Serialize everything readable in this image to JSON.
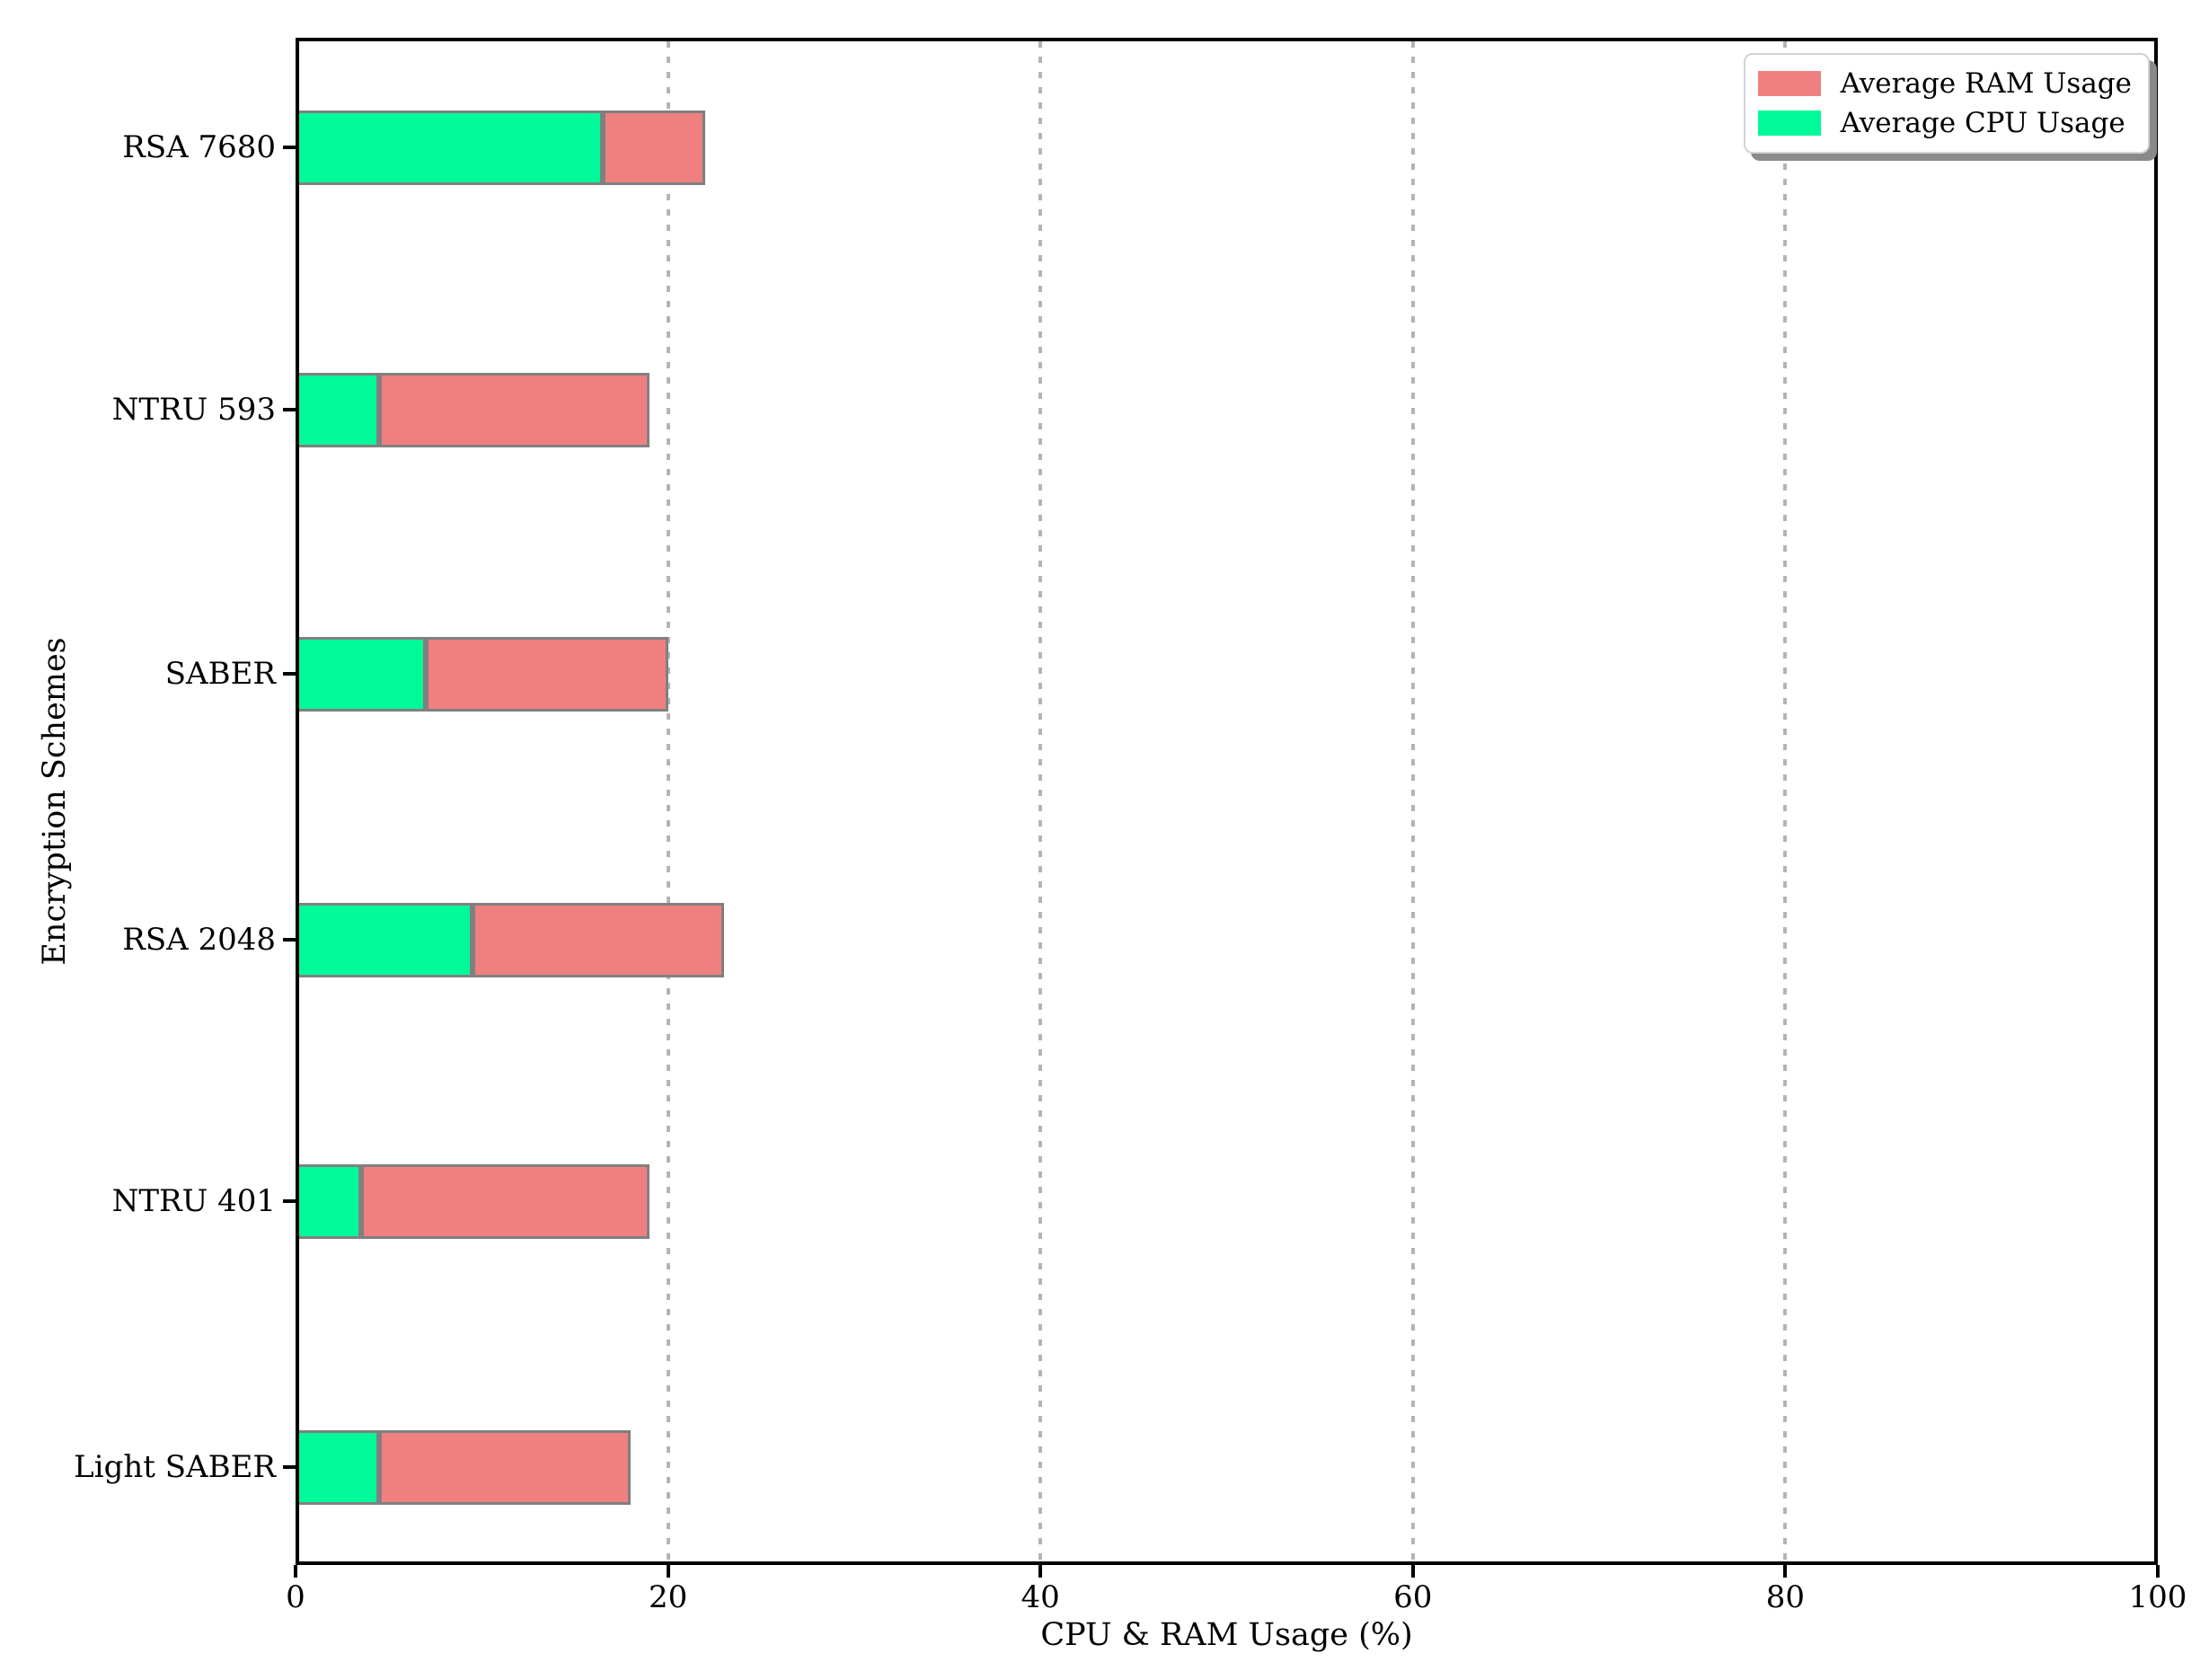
{
  "chart_data": {
    "type": "bar",
    "orientation": "horizontal",
    "stacked": true,
    "title": "",
    "xlabel": "CPU & RAM Usage (%)",
    "ylabel": "Encryption Schemes",
    "xlim": [
      0,
      100
    ],
    "xticks": [
      0,
      20,
      40,
      60,
      80,
      100
    ],
    "grid": {
      "axis": "x",
      "style": "dotted",
      "color": "#b4b4b4"
    },
    "categories": [
      "RSA 7680",
      "NTRU 593",
      "SABER",
      "RSA 2048",
      "NTRU 401",
      "Light SABER"
    ],
    "series": [
      {
        "name": "Average CPU Usage",
        "color": "#00FA9A",
        "values": [
          16.5,
          4.5,
          7.0,
          9.5,
          3.5,
          4.5
        ]
      },
      {
        "name": "Average RAM Usage",
        "color": "#F08080",
        "values": [
          5.5,
          14.5,
          13.0,
          13.5,
          15.5,
          13.5
        ]
      }
    ],
    "bar_edge_color": "#808080",
    "axis_color": "#000000",
    "legend": {
      "position": "upper right",
      "entries": [
        {
          "label": "Average RAM Usage",
          "color": "#F08080"
        },
        {
          "label": "Average CPU Usage",
          "color": "#00FA9A"
        }
      ]
    }
  }
}
